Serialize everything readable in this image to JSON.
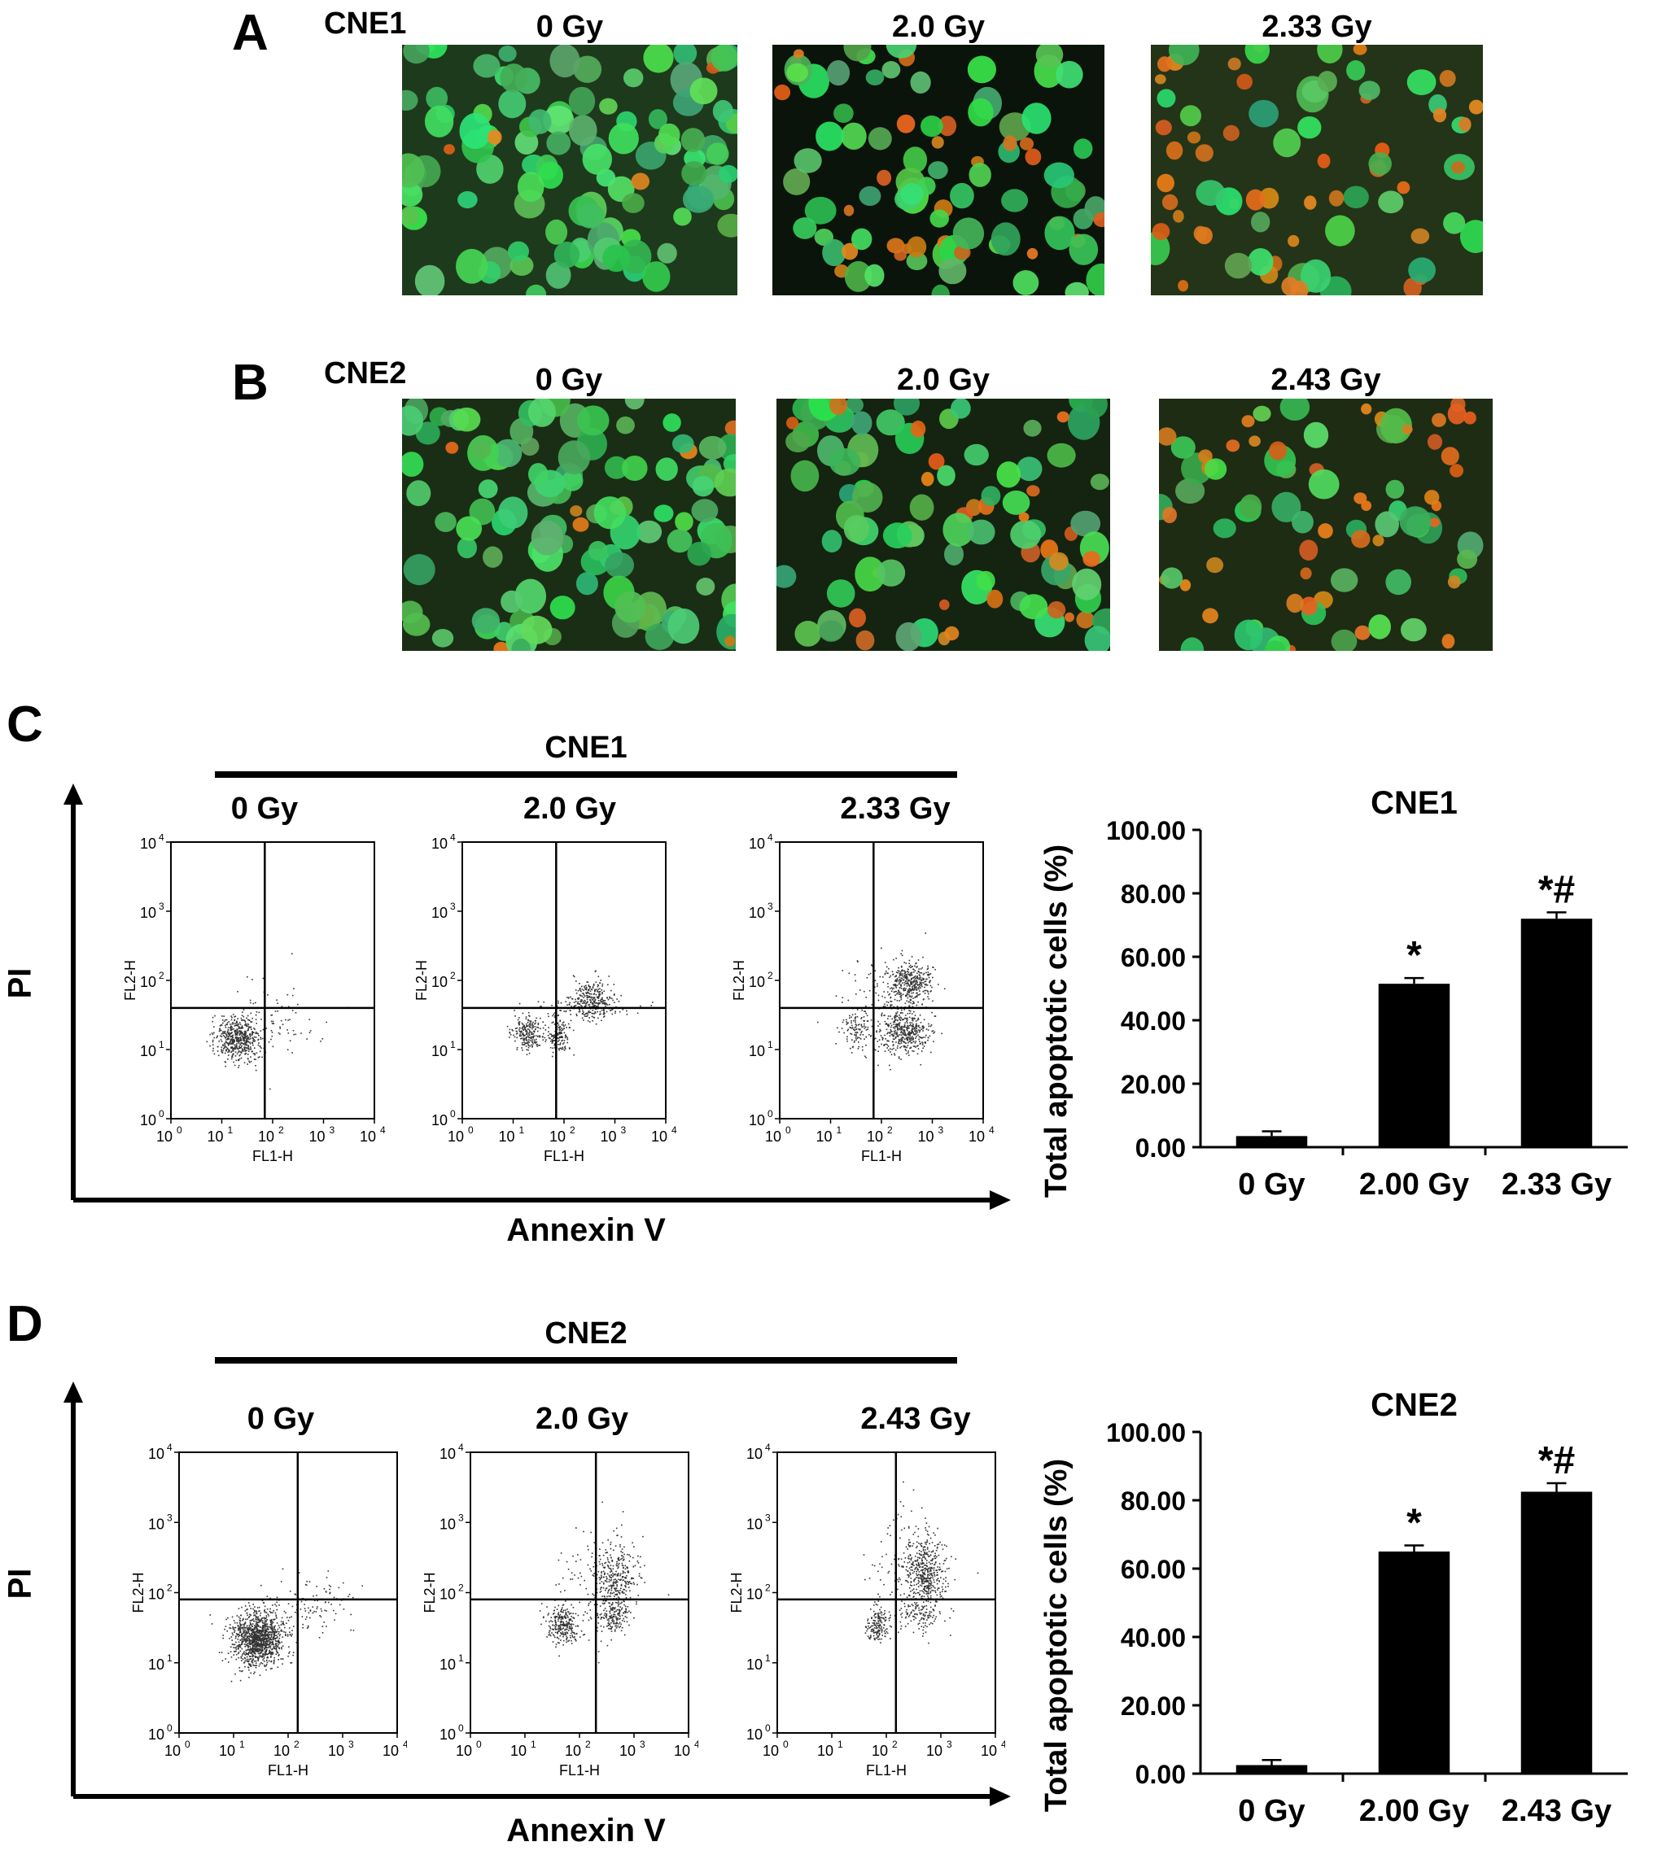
{
  "panels": {
    "a": {
      "letter": "A",
      "cell_line": "CNE1",
      "doses": [
        "0 Gy",
        "2.0 Gy",
        "2.33 Gy"
      ]
    },
    "b": {
      "letter": "B",
      "cell_line": "CNE2",
      "doses": [
        "0 Gy",
        "2.0 Gy",
        "2.43 Gy"
      ]
    },
    "c": {
      "letter": "C",
      "cell_line": "CNE1",
      "doses": [
        "0 Gy",
        "2.0 Gy",
        "2.33 Gy"
      ],
      "y_axis_label": "PI",
      "x_axis_label": "Annexin V",
      "plot_ylabel": "FL2-H",
      "plot_xlabel": "FL1-H"
    },
    "d": {
      "letter": "D",
      "cell_line": "CNE2",
      "doses": [
        "0 Gy",
        "2.0 Gy",
        "2.43 Gy"
      ],
      "y_axis_label": "PI",
      "x_axis_label": "Annexin V",
      "plot_ylabel": "FL2-H",
      "plot_xlabel": "FL1-H"
    }
  },
  "colors": {
    "cell_green": "#3fbf5a",
    "cell_orange": "#d2701e",
    "background_dark": "#0c1a0c",
    "bar": "#000000",
    "dots": "#333333"
  },
  "chart_data": [
    {
      "type": "scatter",
      "panel": "C",
      "title": "0 Gy",
      "xlabel": "FL1-H",
      "ylabel": "FL2-H",
      "xscale": "log",
      "yscale": "log",
      "xlim": [
        1,
        10000
      ],
      "ylim": [
        1,
        10000
      ],
      "tick_labels": [
        "10^0",
        "10^1",
        "10^2",
        "10^3",
        "10^4"
      ],
      "quadrant_lines": {
        "x": 70,
        "y": 40
      }
    },
    {
      "type": "scatter",
      "panel": "C",
      "title": "2.0 Gy",
      "xlabel": "FL1-H",
      "ylabel": "FL2-H",
      "xscale": "log",
      "yscale": "log",
      "xlim": [
        1,
        10000
      ],
      "ylim": [
        1,
        10000
      ],
      "tick_labels": [
        "10^0",
        "10^1",
        "10^2",
        "10^3",
        "10^4"
      ],
      "quadrant_lines": {
        "x": 70,
        "y": 40
      }
    },
    {
      "type": "scatter",
      "panel": "C",
      "title": "2.33 Gy",
      "xlabel": "FL1-H",
      "ylabel": "FL2-H",
      "xscale": "log",
      "yscale": "log",
      "xlim": [
        1,
        10000
      ],
      "ylim": [
        1,
        10000
      ],
      "tick_labels": [
        "10^0",
        "10^1",
        "10^2",
        "10^3",
        "10^4"
      ],
      "quadrant_lines": {
        "x": 70,
        "y": 40
      }
    },
    {
      "type": "bar",
      "panel": "C",
      "title": "CNE1",
      "ylabel": "Total apoptotic cells (%)",
      "categories": [
        "0 Gy",
        "2.00 Gy",
        "2.33 Gy"
      ],
      "values": [
        3.5,
        51.5,
        72.0
      ],
      "errors": [
        1.5,
        1.8,
        2.0
      ],
      "annotations": [
        "",
        "*",
        "*#"
      ],
      "ylim": [
        0,
        100
      ],
      "yticks": [
        "0.00",
        "20.00",
        "40.00",
        "60.00",
        "80.00",
        "100.00"
      ]
    },
    {
      "type": "scatter",
      "panel": "D",
      "title": "0 Gy",
      "xlabel": "FL1-H",
      "ylabel": "FL2-H",
      "xscale": "log",
      "yscale": "log",
      "xlim": [
        1,
        10000
      ],
      "ylim": [
        1,
        10000
      ],
      "tick_labels": [
        "10^0",
        "10^1",
        "10^2",
        "10^3",
        "10^4"
      ],
      "quadrant_lines": {
        "x": 150,
        "y": 80
      }
    },
    {
      "type": "scatter",
      "panel": "D",
      "title": "2.0 Gy",
      "xlabel": "FL1-H",
      "ylabel": "FL2-H",
      "xscale": "log",
      "yscale": "log",
      "xlim": [
        1,
        10000
      ],
      "ylim": [
        1,
        10000
      ],
      "tick_labels": [
        "10^0",
        "10^1",
        "10^2",
        "10^3",
        "10^4"
      ],
      "quadrant_lines": {
        "x": 200,
        "y": 80
      }
    },
    {
      "type": "scatter",
      "panel": "D",
      "title": "2.43 Gy",
      "xlabel": "FL1-H",
      "ylabel": "FL2-H",
      "xscale": "log",
      "yscale": "log",
      "xlim": [
        1,
        10000
      ],
      "ylim": [
        1,
        10000
      ],
      "tick_labels": [
        "10^0",
        "10^1",
        "10^2",
        "10^3",
        "10^4"
      ],
      "quadrant_lines": {
        "x": 150,
        "y": 80
      }
    },
    {
      "type": "bar",
      "panel": "D",
      "title": "CNE2",
      "ylabel": "Total apoptotic cells (%)",
      "categories": [
        "0 Gy",
        "2.00 Gy",
        "2.43 Gy"
      ],
      "values": [
        2.5,
        65.0,
        82.5
      ],
      "errors": [
        1.5,
        1.8,
        2.5
      ],
      "annotations": [
        "",
        "*",
        "*#"
      ],
      "ylim": [
        0,
        100
      ],
      "yticks": [
        "0.00",
        "20.00",
        "40.00",
        "60.00",
        "80.00",
        "100.00"
      ]
    }
  ]
}
